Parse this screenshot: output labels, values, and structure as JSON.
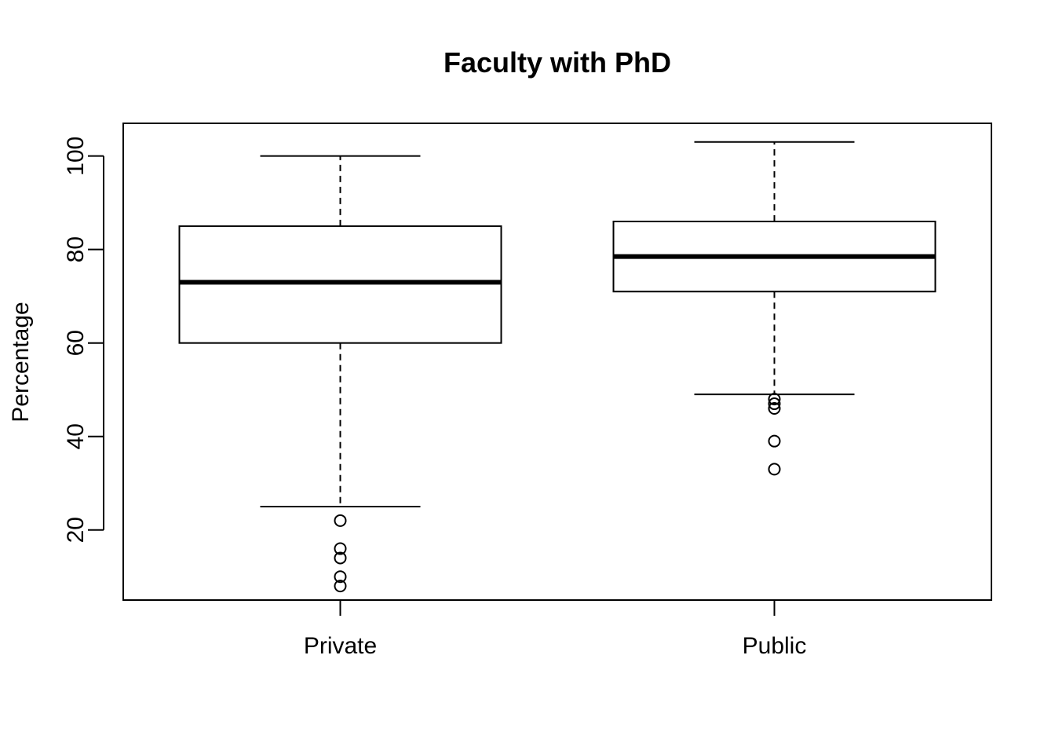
{
  "chart_data": {
    "type": "boxplot",
    "title": "Faculty with PhD",
    "xlabel": "",
    "ylabel": "Percentage",
    "ylim": [
      5,
      107
    ],
    "yticks": [
      20,
      40,
      60,
      80,
      100
    ],
    "categories": [
      "Private",
      "Public"
    ],
    "boxes": [
      {
        "category": "Private",
        "whisker_low": 25,
        "q1": 60,
        "median": 73,
        "q3": 85,
        "whisker_high": 100,
        "outliers": [
          22,
          16,
          14,
          10,
          8
        ]
      },
      {
        "category": "Public",
        "whisker_low": 49,
        "q1": 71,
        "median": 78.5,
        "q3": 86,
        "whisker_high": 103,
        "outliers": [
          48,
          47,
          46,
          39,
          33
        ]
      }
    ],
    "grid": false,
    "legend": "none"
  }
}
